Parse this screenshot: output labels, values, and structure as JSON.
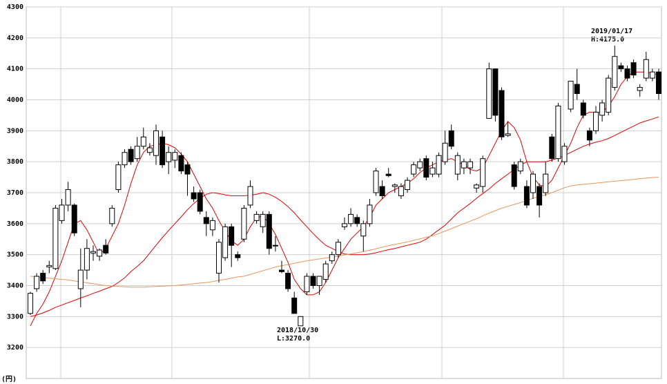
{
  "chart_data": {
    "type": "candlestick",
    "y_unit": "(円)",
    "ylim": [
      3100,
      4300
    ],
    "yticks": [
      3200,
      3300,
      3400,
      3500,
      3600,
      3700,
      3800,
      3900,
      4000,
      4100,
      4200,
      4300
    ],
    "grid": true,
    "up_color": "#ffffff",
    "down_color": "#000000",
    "open": [
      3310,
      3390,
      3440,
      3460,
      3455,
      3610,
      3660,
      3660,
      3390,
      3450,
      3505,
      3495,
      3530,
      3600,
      3710,
      3790,
      3840,
      3810,
      3850,
      3830,
      3820,
      3880,
      3800,
      3805,
      3820,
      3790,
      3700,
      3700,
      3620,
      3580,
      3440,
      3490,
      3590,
      3500,
      3550,
      3660,
      3610,
      3590,
      3630,
      3530,
      3450,
      3440,
      3360,
      3270,
      3380,
      3430,
      3400,
      3420,
      3480,
      3500,
      3590,
      3600,
      3620,
      3560,
      3600,
      3700,
      3720,
      3760,
      3720,
      3690,
      3710,
      3760,
      3780,
      3810,
      3760,
      3760,
      3800,
      3900,
      3760,
      3780,
      3780,
      3715,
      3720,
      3940,
      4100,
      4030,
      3885,
      3790,
      3770,
      3720,
      3700,
      3720,
      3700,
      3880,
      3810,
      3800,
      3970,
      4050,
      3990,
      3900,
      3900,
      3950,
      3960,
      4040,
      4110,
      4100,
      4120,
      4030,
      4070,
      4070,
      4090
    ],
    "high": [
      3380,
      3440,
      3450,
      3480,
      3660,
      3680,
      3735,
      3665,
      3520,
      3550,
      3530,
      3520,
      3550,
      3660,
      3800,
      3840,
      3850,
      3880,
      3910,
      3860,
      3920,
      3900,
      3850,
      3840,
      3830,
      3800,
      3720,
      3710,
      3640,
      3620,
      3550,
      3600,
      3600,
      3510,
      3660,
      3740,
      3640,
      3640,
      3640,
      3560,
      3480,
      3450,
      3380,
      3300,
      3440,
      3440,
      3430,
      3480,
      3510,
      3550,
      3620,
      3650,
      3630,
      3610,
      3680,
      3780,
      3740,
      3780,
      3730,
      3730,
      3750,
      3800,
      3810,
      3820,
      3800,
      3830,
      3900,
      3920,
      3830,
      3810,
      3810,
      3730,
      3820,
      4120,
      4100,
      4040,
      3930,
      3800,
      3810,
      3740,
      3770,
      3730,
      3800,
      3890,
      3990,
      3860,
      4060,
      4100,
      4000,
      3910,
      3980,
      4000,
      4080,
      4175,
      4120,
      4110,
      4130,
      4050,
      4155,
      4100,
      4100
    ],
    "low": [
      3305,
      3380,
      3405,
      3440,
      3450,
      3600,
      3640,
      3560,
      3330,
      3420,
      3480,
      3480,
      3500,
      3590,
      3700,
      3780,
      3790,
      3800,
      3840,
      3820,
      3790,
      3780,
      3760,
      3780,
      3760,
      3690,
      3670,
      3630,
      3560,
      3560,
      3410,
      3480,
      3460,
      3480,
      3540,
      3650,
      3600,
      3570,
      3500,
      3510,
      3440,
      3380,
      3310,
      3270,
      3370,
      3390,
      3370,
      3410,
      3470,
      3490,
      3580,
      3590,
      3590,
      3510,
      3590,
      3690,
      3680,
      3750,
      3700,
      3680,
      3700,
      3750,
      3770,
      3740,
      3750,
      3750,
      3790,
      3840,
      3740,
      3760,
      3760,
      3700,
      3700,
      3940,
      3930,
      3870,
      3880,
      3710,
      3760,
      3650,
      3680,
      3620,
      3690,
      3800,
      3800,
      3790,
      3960,
      4000,
      3940,
      3850,
      3890,
      3930,
      3950,
      4030,
      4090,
      4060,
      4070,
      4010,
      4060,
      4060,
      4000
    ],
    "close": [
      3375,
      3430,
      3415,
      3465,
      3650,
      3660,
      3710,
      3570,
      3450,
      3520,
      3510,
      3515,
      3505,
      3650,
      3790,
      3830,
      3800,
      3850,
      3880,
      3845,
      3900,
      3790,
      3830,
      3830,
      3770,
      3760,
      3680,
      3640,
      3600,
      3610,
      3540,
      3590,
      3530,
      3490,
      3650,
      3720,
      3630,
      3630,
      3520,
      3530,
      3445,
      3390,
      3310,
      3300,
      3430,
      3400,
      3430,
      3470,
      3500,
      3540,
      3600,
      3630,
      3600,
      3600,
      3660,
      3770,
      3690,
      3755,
      3725,
      3720,
      3740,
      3790,
      3800,
      3750,
      3780,
      3820,
      3860,
      3850,
      3820,
      3800,
      3800,
      3725,
      3810,
      4100,
      3950,
      3880,
      3890,
      3720,
      3800,
      3660,
      3760,
      3660,
      3760,
      3810,
      3980,
      3850,
      4060,
      4020,
      3950,
      3870,
      3960,
      3990,
      4070,
      4140,
      4100,
      4070,
      4080,
      4040,
      4130,
      4090,
      4020
    ],
    "moving_averages": [
      {
        "color": "#e00000",
        "values": [
          3270,
          3310,
          3340,
          3380,
          3430,
          3480,
          3540,
          3600,
          3610,
          3580,
          3540,
          3500,
          3520,
          3560,
          3600,
          3660,
          3730,
          3790,
          3830,
          3850,
          3855,
          3860,
          3855,
          3845,
          3825,
          3800,
          3760,
          3720,
          3680,
          3650,
          3610,
          3575,
          3545,
          3530,
          3550,
          3590,
          3620,
          3625,
          3600,
          3565,
          3520,
          3475,
          3420,
          3390,
          3370,
          3370,
          3380,
          3410,
          3450,
          3490,
          3520,
          3550,
          3570,
          3590,
          3620,
          3660,
          3680,
          3700,
          3710,
          3720,
          3730,
          3745,
          3765,
          3780,
          3790,
          3800,
          3805,
          3810,
          3800,
          3790,
          3775,
          3770,
          3780,
          3820,
          3860,
          3900,
          3930,
          3910,
          3870,
          3800,
          3750,
          3725,
          3720,
          3740,
          3780,
          3820,
          3860,
          3910,
          3950,
          3960,
          3960,
          3960,
          3980,
          4010,
          4050,
          4075,
          4090,
          4090,
          4090,
          4085,
          4080
        ]
      },
      {
        "color": "#e00000",
        "values": [
          3300,
          3305,
          3312,
          3320,
          3330,
          3337,
          3345,
          3352,
          3360,
          3367,
          3375,
          3382,
          3390,
          3397,
          3410,
          3425,
          3445,
          3462,
          3480,
          3505,
          3530,
          3555,
          3578,
          3600,
          3622,
          3645,
          3665,
          3682,
          3695,
          3700,
          3697,
          3693,
          3690,
          3690,
          3690,
          3692,
          3695,
          3700,
          3695,
          3685,
          3672,
          3655,
          3635,
          3612,
          3590,
          3568,
          3548,
          3530,
          3520,
          3510,
          3502,
          3500,
          3500,
          3500,
          3502,
          3506,
          3511,
          3516,
          3520,
          3525,
          3530,
          3535,
          3540,
          3550,
          3565,
          3580,
          3595,
          3615,
          3635,
          3650,
          3665,
          3682,
          3697,
          3712,
          3730,
          3745,
          3760,
          3775,
          3790,
          3800,
          3800,
          3800,
          3800,
          3805,
          3812,
          3820,
          3830,
          3840,
          3850,
          3857,
          3863,
          3868,
          3875,
          3885,
          3895,
          3905,
          3915,
          3925,
          3932,
          3938,
          3945
        ]
      },
      {
        "color": "#e8955a",
        "values": [
          3430,
          3428,
          3426,
          3424,
          3422,
          3420,
          3418,
          3415,
          3412,
          3409,
          3406,
          3403,
          3400,
          3398,
          3397,
          3396,
          3395,
          3395,
          3395,
          3396,
          3397,
          3398,
          3399,
          3400,
          3402,
          3404,
          3406,
          3408,
          3410,
          3413,
          3417,
          3420,
          3424,
          3428,
          3430,
          3436,
          3442,
          3448,
          3454,
          3460,
          3464,
          3468,
          3472,
          3476,
          3480,
          3483,
          3486,
          3489,
          3492,
          3495,
          3499,
          3502,
          3506,
          3510,
          3514,
          3519,
          3524,
          3529,
          3533,
          3537,
          3541,
          3546,
          3551,
          3556,
          3561,
          3568,
          3576,
          3584,
          3592,
          3600,
          3608,
          3616,
          3625,
          3634,
          3642,
          3650,
          3656,
          3662,
          3668,
          3675,
          3682,
          3688,
          3693,
          3700,
          3708,
          3716,
          3722,
          3725,
          3727,
          3729,
          3731,
          3733,
          3735,
          3737,
          3739,
          3741,
          3743,
          3745,
          3747,
          3749,
          3750
        ]
      }
    ],
    "annotations": [
      {
        "date": "2018/10/30",
        "label": "L:3270.0"
      },
      {
        "date": "2019/01/17",
        "label": "H:4175.0"
      }
    ]
  }
}
